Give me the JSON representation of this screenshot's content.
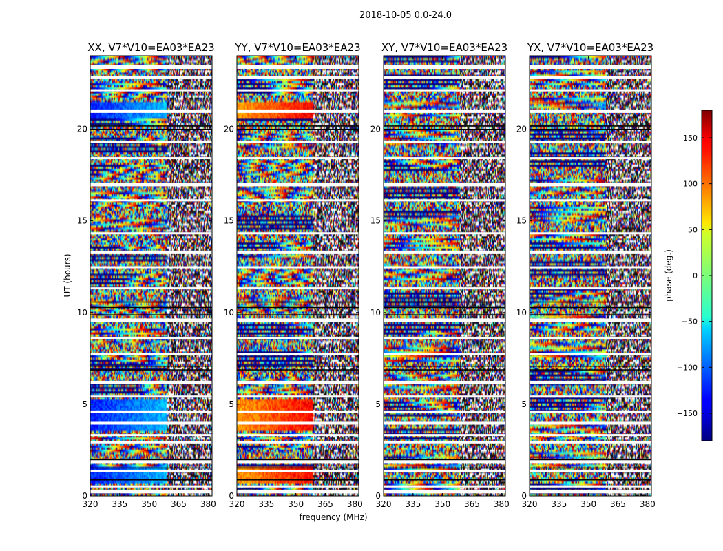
{
  "figure_title": "2018-10-05 0.0-24.0",
  "xlabel": "frequency (MHz)",
  "ylabel": "UT (hours)",
  "colorbar": {
    "label": "phase (deg.)",
    "range": [
      -180,
      180
    ],
    "ticks": [
      -150,
      -100,
      -50,
      0,
      50,
      100,
      150
    ],
    "tick_labels": [
      "−150",
      "−100",
      "−50",
      "0",
      "50",
      "100",
      "150"
    ]
  },
  "chart_data": {
    "type": "heatmap",
    "title": "2018-10-05 0.0-24.0",
    "xlabel": "frequency (MHz)",
    "ylabel": "UT (hours)",
    "xlim": [
      320,
      382
    ],
    "ylim": [
      0,
      24
    ],
    "xticks": [
      320,
      335,
      350,
      365,
      380
    ],
    "yticks": [
      0,
      5,
      10,
      15,
      20
    ],
    "colormap": "jet",
    "value_label": "phase (deg.)",
    "value_range": [
      -180,
      180
    ],
    "panels": [
      {
        "name": "XX, V7*V10=EA03*EA23",
        "polarization": "XX"
      },
      {
        "name": "YY, V7*V10=EA03*EA23",
        "polarization": "YY"
      },
      {
        "name": "XY, V7*V10=EA03*EA23",
        "polarization": "XY"
      },
      {
        "name": "YX, V7*V10=EA03*EA23",
        "polarization": "YX"
      }
    ]
  }
}
